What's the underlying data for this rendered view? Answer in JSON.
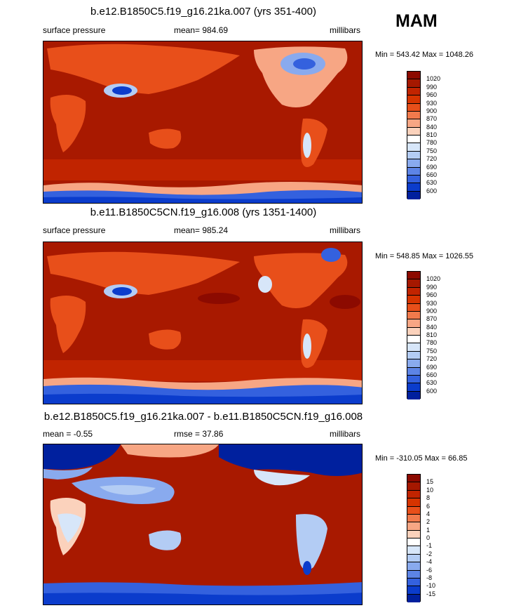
{
  "season": "MAM",
  "panels": [
    {
      "title": "b.e12.B1850C5.f19_g16.21ka.007 (yrs 351-400)",
      "left_label": "surface pressure",
      "center_label": "mean= 984.69",
      "right_label": "millibars",
      "minmax": "Min = 543.42 Max = 1048.26"
    },
    {
      "title": "b.e11.B1850C5CN.f19_g16.008 (yrs 1351-1400)",
      "left_label": "surface pressure",
      "center_label": "mean= 985.24",
      "right_label": "millibars",
      "minmax": "Min = 548.85 Max = 1026.55"
    },
    {
      "title": "b.e12.B1850C5.f19_g16.21ka.007 - b.e11.B1850C5CN.f19_g16.008",
      "left_label": "mean = -0.55",
      "center_label": "rmse = 37.86",
      "right_label": "millibars",
      "minmax": "Min = -310.05 Max = 66.85"
    }
  ],
  "colorbars": {
    "pressure": {
      "labels": [
        "1020",
        "990",
        "960",
        "930",
        "900",
        "870",
        "840",
        "810",
        "780",
        "750",
        "720",
        "690",
        "660",
        "630",
        "600"
      ],
      "colors": [
        "#8c0a00",
        "#a51800",
        "#c12400",
        "#d63400",
        "#e84f1a",
        "#f17a4c",
        "#f7a684",
        "#fbd2bc",
        "#ffffff",
        "#d7e6f9",
        "#b3ccf4",
        "#89aaee",
        "#5d84e6",
        "#3461de",
        "#0b3ccc",
        "#00209e"
      ]
    },
    "difference": {
      "labels": [
        "15",
        "10",
        "8",
        "6",
        "4",
        "2",
        "1",
        "0",
        "-1",
        "-2",
        "-4",
        "-6",
        "-8",
        "-10",
        "-15"
      ],
      "colors": [
        "#8c0a00",
        "#a51800",
        "#c12400",
        "#d63400",
        "#e84f1a",
        "#f17a4c",
        "#f7a684",
        "#fbd2bc",
        "#ffffff",
        "#d7e6f9",
        "#b3ccf4",
        "#89aaee",
        "#5d84e6",
        "#3461de",
        "#0b3ccc",
        "#00209e"
      ]
    }
  },
  "chart_data": [
    {
      "type": "heatmap",
      "title": "b.e12.B1850C5.f19_g16.21ka.007 (yrs 351-400)",
      "variable": "surface pressure",
      "units": "millibars",
      "mean": 984.69,
      "min": 543.42,
      "max": 1048.26,
      "contour_levels": [
        600,
        630,
        660,
        690,
        720,
        750,
        780,
        810,
        840,
        870,
        900,
        930,
        960,
        990,
        1020
      ]
    },
    {
      "type": "heatmap",
      "title": "b.e11.B1850C5CN.f19_g16.008 (yrs 1351-1400)",
      "variable": "surface pressure",
      "units": "millibars",
      "mean": 985.24,
      "min": 548.85,
      "max": 1026.55,
      "contour_levels": [
        600,
        630,
        660,
        690,
        720,
        750,
        780,
        810,
        840,
        870,
        900,
        930,
        960,
        990,
        1020
      ]
    },
    {
      "type": "heatmap",
      "title": "b.e12.B1850C5.f19_g16.21ka.007 - b.e11.B1850C5CN.f19_g16.008",
      "units": "millibars",
      "mean": -0.55,
      "rmse": 37.86,
      "min": -310.05,
      "max": 66.85,
      "contour_levels": [
        -15,
        -10,
        -8,
        -6,
        -4,
        -2,
        -1,
        0,
        1,
        2,
        4,
        6,
        8,
        10,
        15
      ]
    }
  ]
}
